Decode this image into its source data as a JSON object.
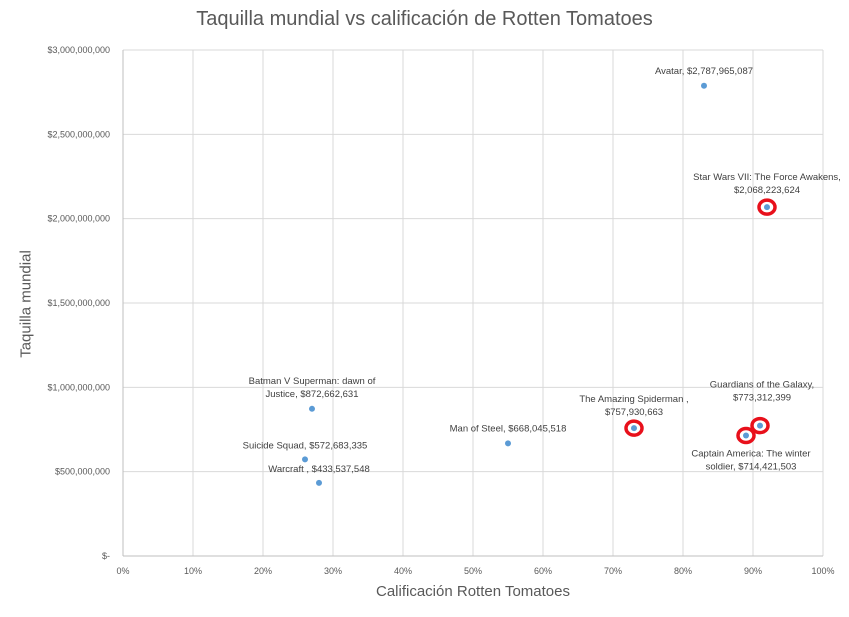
{
  "chart_data": {
    "type": "scatter",
    "title": "Taquilla mundial vs calificación de Rotten Tomatoes",
    "xlabel": "Calificación Rotten Tomatoes",
    "ylabel": "Taquilla mundial",
    "xlim": [
      0,
      1
    ],
    "ylim": [
      0,
      3000000000
    ],
    "x_ticks": [
      "0%",
      "10%",
      "20%",
      "30%",
      "40%",
      "50%",
      "60%",
      "70%",
      "80%",
      "90%",
      "100%"
    ],
    "y_ticks": [
      "$-",
      "$500,000,000",
      "$1,000,000,000",
      "$1,500,000,000",
      "$2,000,000,000",
      "$2,500,000,000",
      "$3,000,000,000"
    ],
    "grid": true,
    "legend": "none",
    "point_color": "#5B9BD5",
    "highlight_color": "#E8101B",
    "points": [
      {
        "label_lines": [
          "Avatar,  $2,787,965,087"
        ],
        "x": 0.83,
        "y": 2787965087,
        "highlighted": false
      },
      {
        "label_lines": [
          "Star Wars VII: The Force Awakens,",
          "$2,068,223,624"
        ],
        "x": 0.92,
        "y": 2068223624,
        "highlighted": true
      },
      {
        "label_lines": [
          "Batman V Superman: dawn of",
          "Justice,  $872,662,631"
        ],
        "x": 0.27,
        "y": 872662631,
        "highlighted": false
      },
      {
        "label_lines": [
          "Suicide Squad,  $572,683,335"
        ],
        "x": 0.26,
        "y": 572683335,
        "highlighted": false
      },
      {
        "label_lines": [
          "Warcraft ,  $433,537,548"
        ],
        "x": 0.28,
        "y": 433537548,
        "highlighted": false
      },
      {
        "label_lines": [
          "Man of Steel,  $668,045,518"
        ],
        "x": 0.55,
        "y": 668045518,
        "highlighted": false
      },
      {
        "label_lines": [
          "The Amazing Spiderman ,",
          "$757,930,663"
        ],
        "x": 0.73,
        "y": 757930663,
        "highlighted": true
      },
      {
        "label_lines": [
          "Guardians of the Galaxy,",
          "$773,312,399"
        ],
        "x": 0.91,
        "y": 773312399,
        "highlighted": true
      },
      {
        "label_lines": [
          "Captain America: The winter",
          "soldier,  $714,421,503"
        ],
        "x": 0.89,
        "y": 714421503,
        "highlighted": true
      }
    ]
  }
}
